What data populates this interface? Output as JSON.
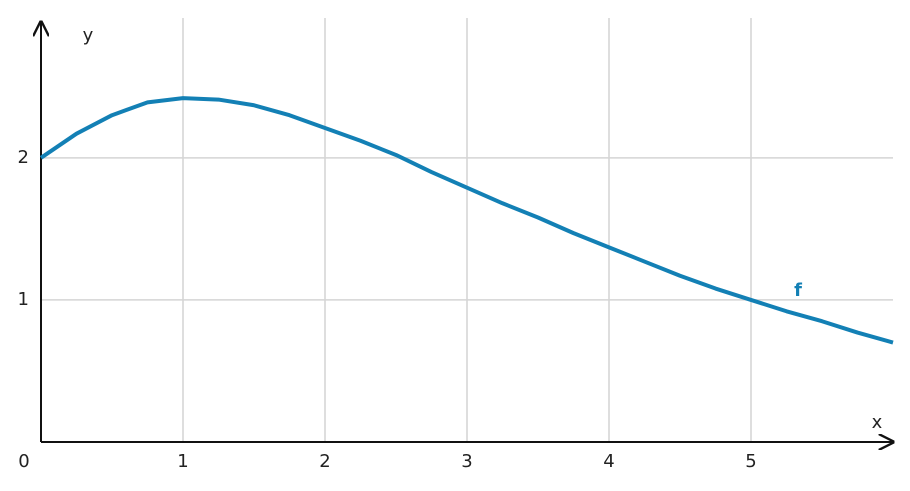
{
  "chart_data": {
    "type": "line",
    "x_label": "x",
    "y_label": "y",
    "x": [
      0,
      0.25,
      0.5,
      0.75,
      1,
      1.25,
      1.5,
      1.75,
      2,
      2.25,
      2.5,
      2.75,
      3,
      3.25,
      3.5,
      3.75,
      4,
      4.25,
      4.5,
      4.75,
      5,
      5.25,
      5.5,
      5.75,
      6
    ],
    "series": [
      {
        "name": "f",
        "color": "#1380b5",
        "values": [
          2.0,
          2.17,
          2.3,
          2.39,
          2.42,
          2.41,
          2.37,
          2.3,
          2.21,
          2.12,
          2.02,
          1.9,
          1.79,
          1.68,
          1.58,
          1.47,
          1.37,
          1.27,
          1.17,
          1.08,
          1.0,
          0.92,
          0.85,
          0.77,
          0.7
        ]
      }
    ],
    "xlim": [
      0,
      6
    ],
    "ylim": [
      0,
      2.97
    ],
    "xticks": [
      0,
      1,
      2,
      3,
      4,
      5
    ],
    "yticks": [
      1,
      2
    ],
    "grid": true
  }
}
